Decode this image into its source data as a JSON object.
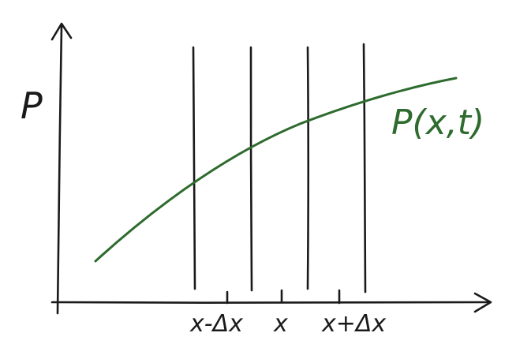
{
  "colors": {
    "ink": "#1a1a1a",
    "curve": "#2e6b2e"
  },
  "labels": {
    "y_axis": "P",
    "curve": "P(x,t)",
    "tick_left": "x-Δx",
    "tick_center": "x",
    "tick_right": "x+Δx"
  }
}
